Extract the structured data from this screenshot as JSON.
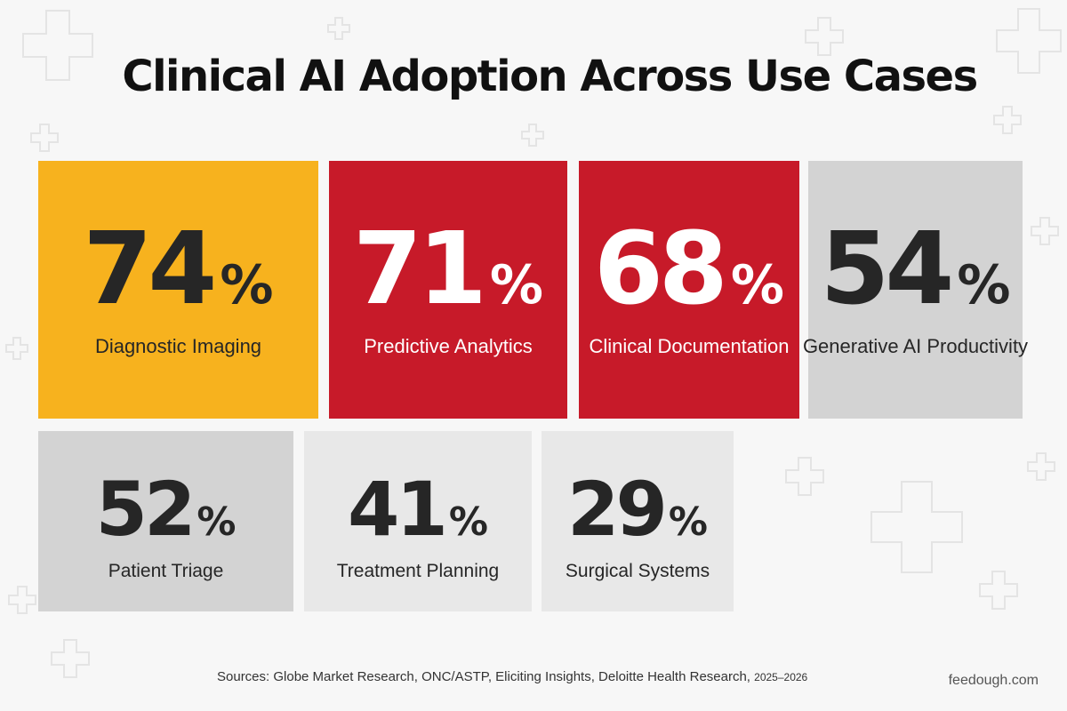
{
  "title": "Clinical AI Adoption Across Use Cases",
  "chart_data": {
    "type": "table",
    "title": "Clinical AI Adoption Across Use Cases",
    "unit": "%",
    "categories": [
      "Diagnostic Imaging",
      "Predictive Analytics",
      "Clinical Documentation",
      "Generative AI Productivity",
      "Patient Triage",
      "Treatment Planning",
      "Surgical Systems"
    ],
    "values": [
      74,
      71,
      68,
      54,
      52,
      41,
      29
    ],
    "tiles": [
      {
        "value": "74",
        "unit": "%",
        "label": "Diagnostic Imaging",
        "bg": "#f7b21e",
        "fg": "#262626",
        "label_color": "#262626"
      },
      {
        "value": "71",
        "unit": "%",
        "label": "Predictive Analytics",
        "bg": "#c71a29",
        "fg": "#ffffff",
        "label_color": "#ffffff"
      },
      {
        "value": "68",
        "unit": "%",
        "label": "Clinical Documentation",
        "bg": "#c71a29",
        "fg": "#ffffff",
        "label_color": "#ffffff"
      },
      {
        "value": "54",
        "unit": "%",
        "label": "Generative AI Productivity",
        "bg": "#d3d3d3",
        "fg": "#262626",
        "label_color": "#262626"
      },
      {
        "value": "52",
        "unit": "%",
        "label": "Patient Triage",
        "bg": "#d3d3d3",
        "fg": "#262626",
        "label_color": "#262626"
      },
      {
        "value": "41",
        "unit": "%",
        "label": "Treatment Planning",
        "bg": "#e8e8e8",
        "fg": "#262626",
        "label_color": "#262626"
      },
      {
        "value": "29",
        "unit": "%",
        "label": "Surgical Systems",
        "bg": "#e8e8e8",
        "fg": "#262626",
        "label_color": "#262626"
      }
    ]
  },
  "footer": {
    "sources_text": "Sources:  Globe Market Research, ONC/ASTP, Eliciting Insights, Deloitte Health Research, ",
    "sources_years": "2025–2026",
    "brand": "feedough.com"
  }
}
